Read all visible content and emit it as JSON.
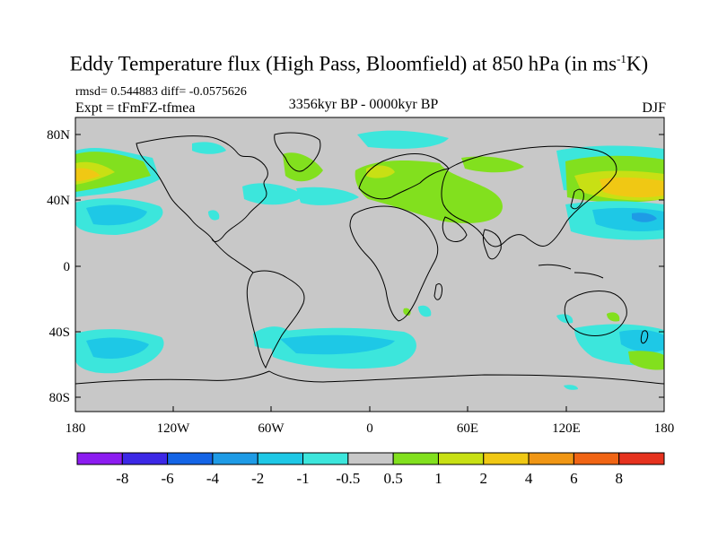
{
  "header": {
    "title_main": "Eddy Temperature flux (High Pass, Bloomfield) at 850 hPa (in ms",
    "title_sup": "-1",
    "title_end": "K)",
    "stats": "rmsd= 0.544883 diff= -0.0575626",
    "experiment": "Expt = tFmFZ-tfmea",
    "period": "3356kyr BP - 0000kyr BP",
    "season": "DJF"
  },
  "axes": {
    "lat_labels": [
      "80N",
      "40N",
      "0",
      "40S",
      "80S"
    ],
    "lon_labels": [
      "180",
      "120W",
      "60W",
      "0",
      "60E",
      "120E",
      "180"
    ]
  },
  "colorbar": {
    "colors": [
      "#8c1cf0",
      "#3c28e6",
      "#1464e6",
      "#1e9be6",
      "#1ec8e6",
      "#3ce6dc",
      "#c8c8c8",
      "#82e01e",
      "#c8e014",
      "#f0c814",
      "#f09614",
      "#f06414",
      "#e6321e"
    ],
    "labels": [
      "-8",
      "-6",
      "-4",
      "-2",
      "-1",
      "-0.5",
      "0.5",
      "1",
      "2",
      "4",
      "6",
      "8"
    ]
  },
  "colors": {
    "land_neutral": "#c8c8c8",
    "coast": "#000000"
  }
}
